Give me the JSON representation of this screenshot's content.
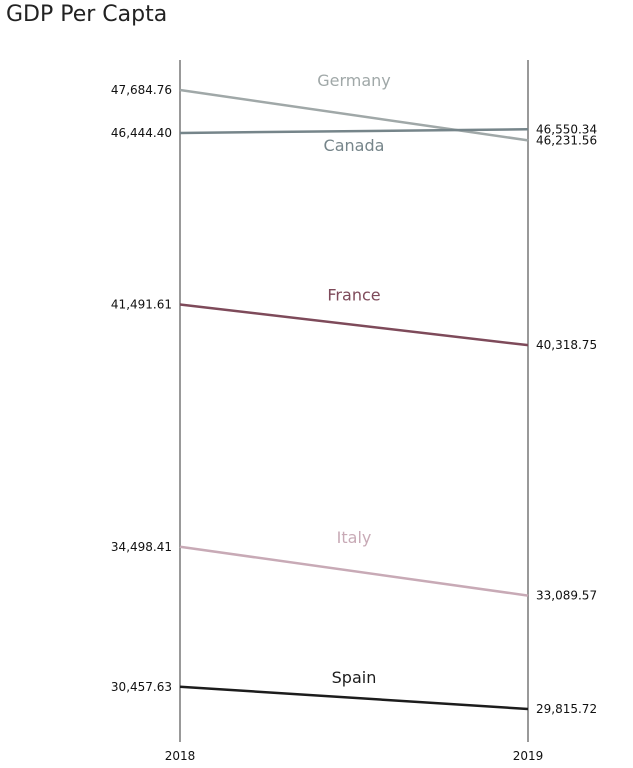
{
  "chart_data": {
    "type": "line",
    "title": "GDP Per Capta",
    "x": [
      "2018",
      "2019"
    ],
    "series": [
      {
        "name": "Germany",
        "values": [
          47684.76,
          46231.56
        ],
        "labels": [
          "47,684.76",
          "46,231.56"
        ],
        "color": "#a0a8a8"
      },
      {
        "name": "Canada",
        "values": [
          46444.4,
          46550.34
        ],
        "labels": [
          "46,444.40",
          "46,550.34"
        ],
        "color": "#76858a"
      },
      {
        "name": "France",
        "values": [
          41491.61,
          40318.75
        ],
        "labels": [
          "41,491.61",
          "40,318.75"
        ],
        "color": "#7e4a5a"
      },
      {
        "name": "Italy",
        "values": [
          34498.41,
          33089.57
        ],
        "labels": [
          "34,498.41",
          "33,089.57"
        ],
        "color": "#c8aab6"
      },
      {
        "name": "Spain",
        "values": [
          30457.63,
          29815.72
        ],
        "labels": [
          "30,457.63",
          "29,815.72"
        ],
        "color": "#1c1c1c"
      }
    ],
    "grid": false,
    "legend": "none"
  }
}
